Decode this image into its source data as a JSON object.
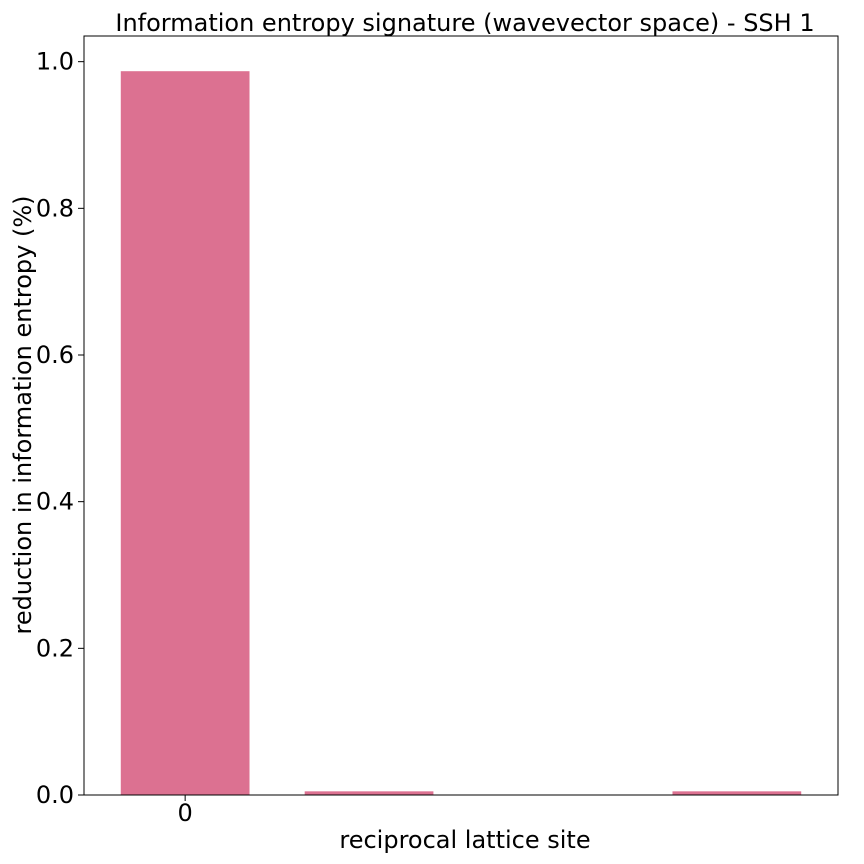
{
  "chart_data": {
    "type": "bar",
    "title": "Information entropy signature (wavevector space) - SSH 1",
    "xlabel": "reciprocal lattice site",
    "ylabel": "reduction in information entropy (%)",
    "categories": [
      0,
      1,
      2,
      3
    ],
    "x_tick_labels": [
      "0"
    ],
    "values": [
      0.987,
      0.005,
      0.0,
      0.005
    ],
    "xlim": [
      -0.55,
      3.55
    ],
    "ylim": [
      0.0,
      1.035
    ],
    "y_ticks": [
      "0.0",
      "0.2",
      "0.4",
      "0.6",
      "0.8",
      "1.0"
    ],
    "grid": false,
    "legend": "none",
    "colors": {
      "bar": "#dc7191",
      "axis": "#000000"
    }
  }
}
